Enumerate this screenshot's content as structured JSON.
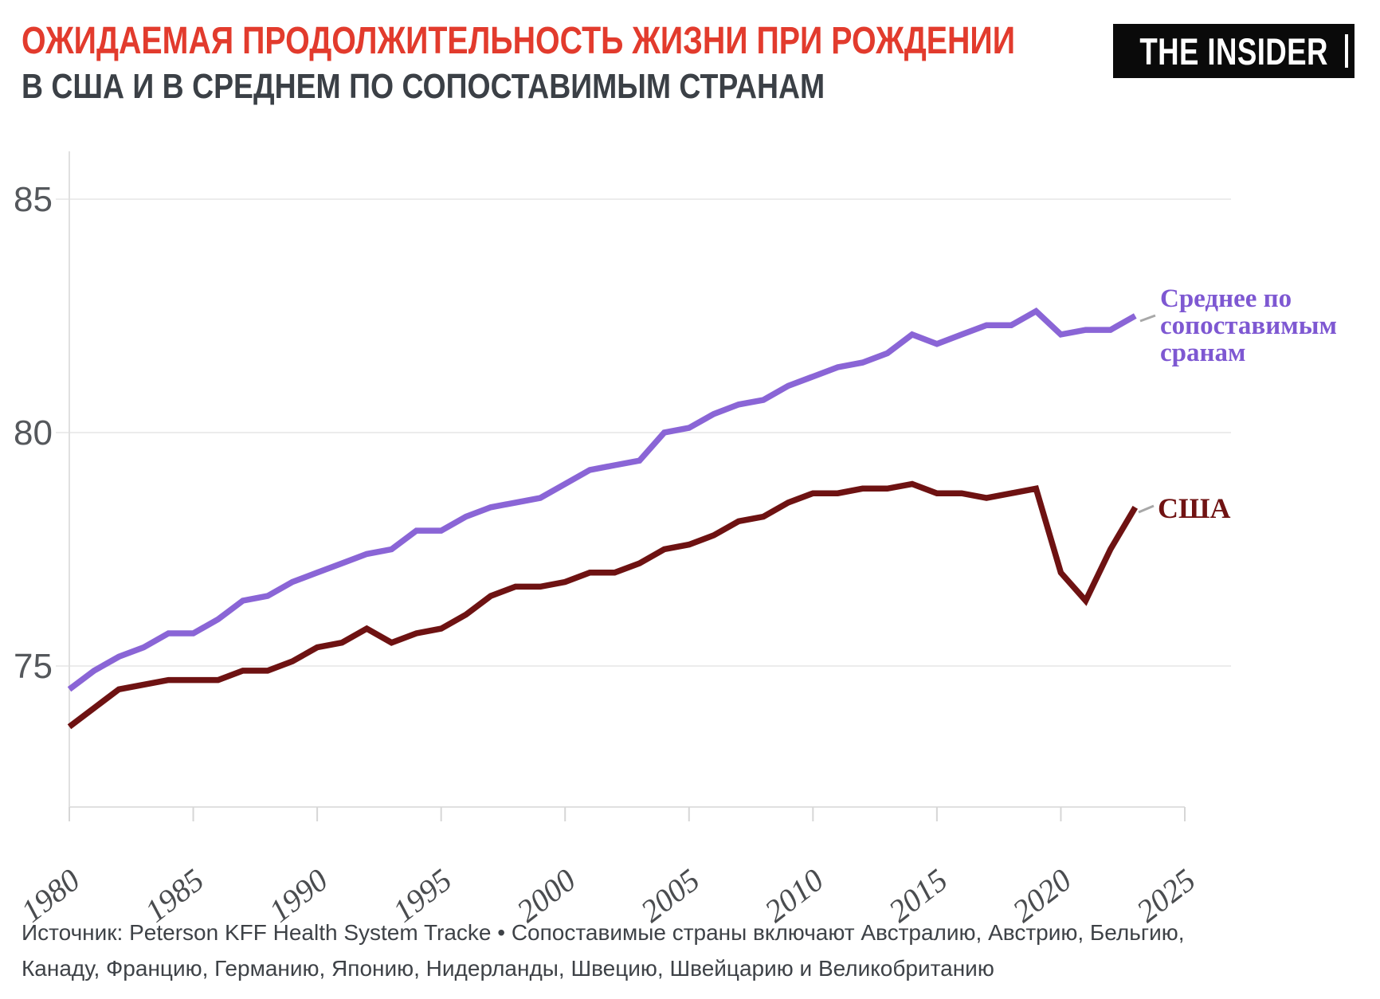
{
  "header": {
    "title": "ОЖИДАЕМАЯ ПРОДОЛЖИТЕЛЬНОСТЬ ЖИЗНИ ПРИ РОЖДЕНИИ",
    "subtitle": "В США И В СРЕДНЕМ ПО СОПОСТАВИМЫМ СТРАНАМ"
  },
  "logo": {
    "text": "THE INSIDER"
  },
  "legend": {
    "avg": {
      "line1": "Среднее по",
      "line2": "сопоставимым",
      "line3": "сранам"
    },
    "usa": {
      "label": "США"
    }
  },
  "source": {
    "text": "Источник: Peterson KFF Health System Tracke • Сопоставимые страны включают Австралию, Австрию, Бельгию, Канаду, Францию, Германию, Японию, Нидерланды, Швецию, Швейцарию и Великобританию"
  },
  "colors": {
    "title_red": "#e23b2d",
    "subtitle_dark": "#3b4046",
    "avg_line": "#8a65d6",
    "usa_line": "#6e1212",
    "grid": "#ececec",
    "spine": "#e0e0e0",
    "tick": "#d6d6d6",
    "axis_text": "#55585c",
    "leader_dash": "#a8a8a8"
  },
  "chart_data": {
    "type": "line",
    "title": "Ожидаемая продолжительность жизни при рождении в США и в среднем по сопоставимым странам",
    "xlabel": "",
    "ylabel": "",
    "grid": true,
    "legend_position": "right-annotations",
    "xlim": [
      1980,
      2025
    ],
    "ylim": [
      72,
      86
    ],
    "x_ticks": [
      1980,
      1985,
      1990,
      1995,
      2000,
      2005,
      2010,
      2015,
      2020,
      2025
    ],
    "y_ticks": [
      75,
      80,
      85
    ],
    "x": [
      1980,
      1981,
      1982,
      1983,
      1984,
      1985,
      1986,
      1987,
      1988,
      1989,
      1990,
      1991,
      1992,
      1993,
      1994,
      1995,
      1996,
      1997,
      1998,
      1999,
      2000,
      2001,
      2002,
      2003,
      2004,
      2005,
      2006,
      2007,
      2008,
      2009,
      2010,
      2011,
      2012,
      2013,
      2014,
      2015,
      2016,
      2017,
      2018,
      2019,
      2020,
      2021,
      2022,
      2023
    ],
    "series": [
      {
        "name": "Среднее по сопоставимым сранам",
        "color": "#8a65d6",
        "values": [
          74.5,
          74.9,
          75.2,
          75.4,
          75.7,
          75.7,
          76.0,
          76.4,
          76.5,
          76.8,
          77.0,
          77.2,
          77.4,
          77.5,
          77.9,
          77.9,
          78.2,
          78.4,
          78.5,
          78.6,
          78.9,
          79.2,
          79.3,
          79.4,
          80.0,
          80.1,
          80.4,
          80.6,
          80.7,
          81.0,
          81.2,
          81.4,
          81.5,
          81.7,
          82.1,
          81.9,
          82.1,
          82.3,
          82.3,
          82.6,
          82.1,
          82.2,
          82.2,
          82.5
        ]
      },
      {
        "name": "США",
        "color": "#6e1212",
        "values": [
          73.7,
          74.1,
          74.5,
          74.6,
          74.7,
          74.7,
          74.7,
          74.9,
          74.9,
          75.1,
          75.4,
          75.5,
          75.8,
          75.5,
          75.7,
          75.8,
          76.1,
          76.5,
          76.7,
          76.7,
          76.8,
          77.0,
          77.0,
          77.2,
          77.5,
          77.6,
          77.8,
          78.1,
          78.2,
          78.5,
          78.7,
          78.7,
          78.8,
          78.8,
          78.9,
          78.7,
          78.7,
          78.6,
          78.7,
          78.8,
          77.0,
          76.4,
          77.5,
          78.4
        ]
      }
    ]
  }
}
